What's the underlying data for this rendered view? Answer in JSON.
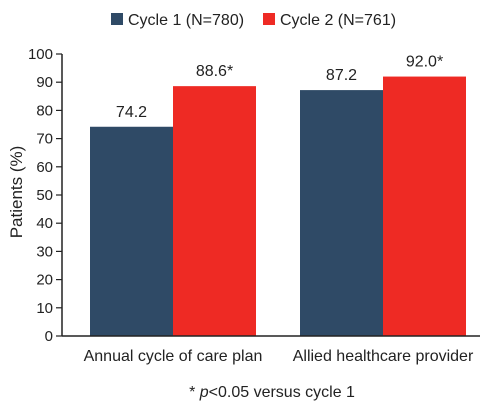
{
  "chart_data": {
    "type": "bar",
    "categories": [
      "Annual cycle of care plan",
      "Allied healthcare provider"
    ],
    "series": [
      {
        "name": "Cycle 1 (N=780)",
        "values": [
          74.2,
          87.2
        ],
        "labels": [
          "74.2",
          "87.2"
        ],
        "color": "#2F4A66"
      },
      {
        "name": "Cycle 2 (N=761)",
        "values": [
          88.6,
          92.0
        ],
        "labels": [
          "88.6*",
          "92.0*"
        ],
        "color": "#EE2A24"
      }
    ],
    "ylabel": "Patients (%)",
    "xlabel": "",
    "ylim": [
      0,
      100
    ],
    "yticks": [
      0,
      10,
      20,
      30,
      40,
      50,
      60,
      70,
      80,
      90,
      100
    ],
    "grid": false,
    "legend_position": "top",
    "footnote_prefix": "* ",
    "footnote_italic": "p",
    "footnote_suffix": "<0.05 versus cycle 1"
  }
}
